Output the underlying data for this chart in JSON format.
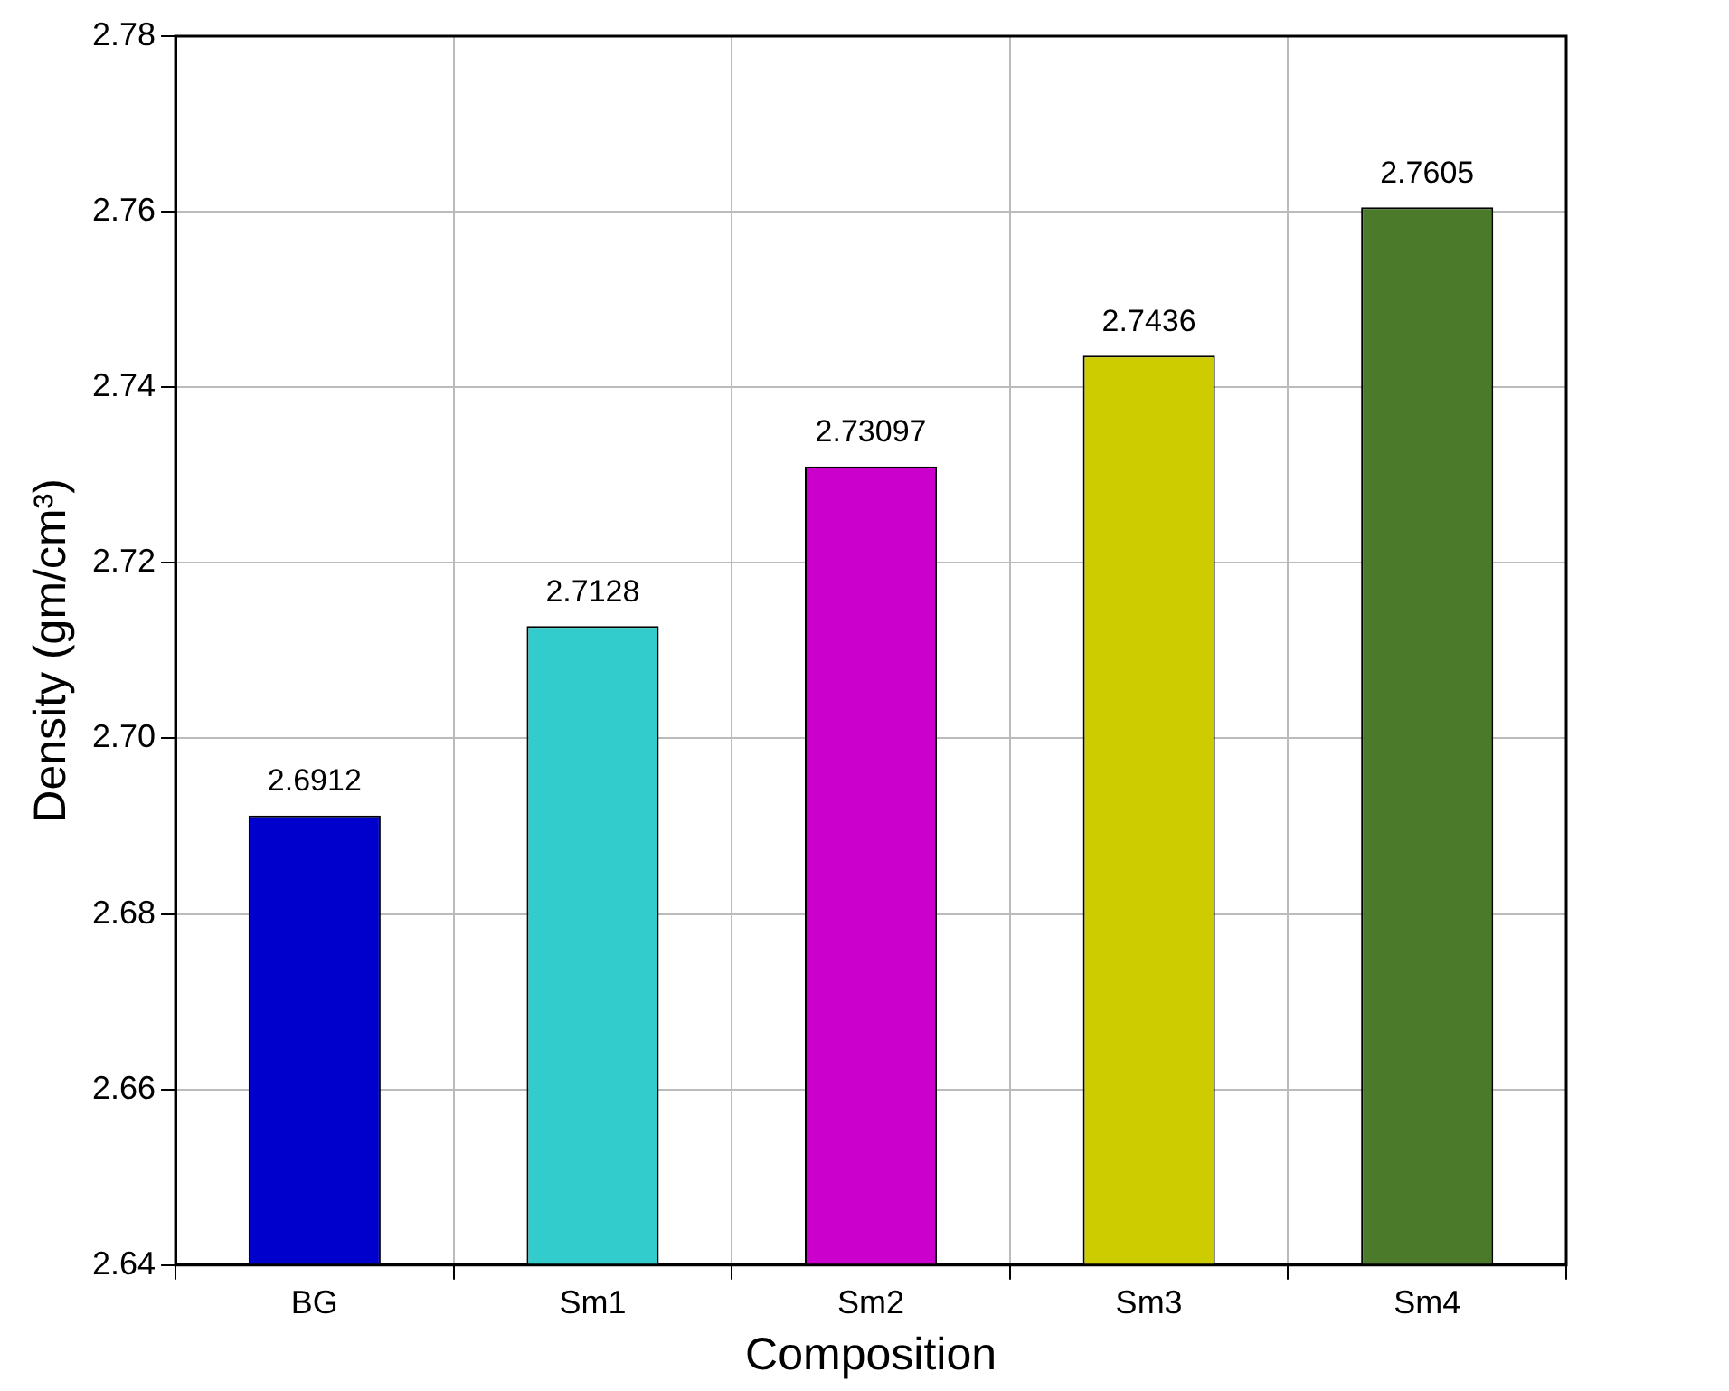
{
  "chart_data": {
    "type": "bar",
    "xlabel": "Composition",
    "ylabel": "Density (gm/cm³)",
    "categories": [
      "BG",
      "Sm1",
      "Sm2",
      "Sm3",
      "Sm4"
    ],
    "values": [
      2.6912,
      2.7128,
      2.73097,
      2.7436,
      2.7605
    ],
    "colors": [
      "#0000cc",
      "#33cccc",
      "#cc00cc",
      "#cccc00",
      "#4a7a2a"
    ],
    "ylim": [
      2.64,
      2.78
    ],
    "yticks": [
      {
        "value": 2.64,
        "label": "2.64"
      },
      {
        "value": 2.66,
        "label": "2.66"
      },
      {
        "value": 2.68,
        "label": "2.68"
      },
      {
        "value": 2.7,
        "label": "2.70"
      },
      {
        "value": 2.72,
        "label": "2.72"
      },
      {
        "value": 2.74,
        "label": "2.74"
      },
      {
        "value": 2.76,
        "label": "2.76"
      },
      {
        "value": 2.78,
        "label": "2.78"
      }
    ],
    "grid": true,
    "data_labels": true
  }
}
